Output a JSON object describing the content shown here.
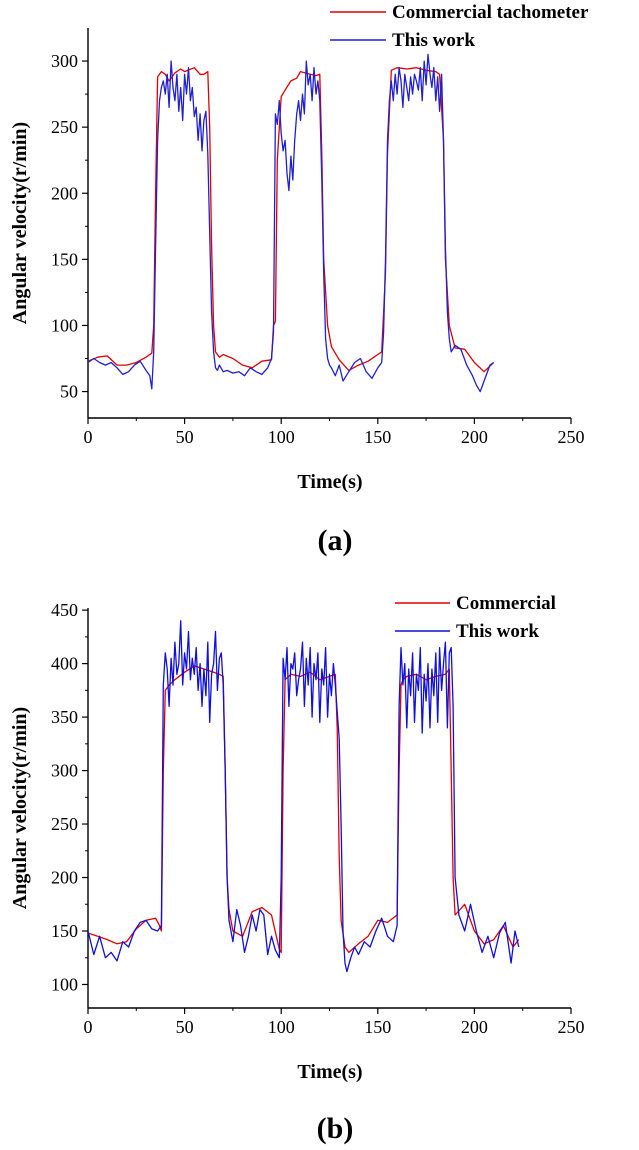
{
  "chart_data": [
    {
      "type": "line",
      "panel_label": "(a)",
      "xlabel": "Time(s)",
      "ylabel": "Angular velocity(r/min)",
      "xlim": [
        0,
        250
      ],
      "ylim": [
        30,
        325
      ],
      "xticks": [
        0,
        50,
        100,
        150,
        200,
        250
      ],
      "yticks": [
        50,
        100,
        150,
        200,
        250,
        300
      ],
      "legend_position": "top-right",
      "series": [
        {
          "name": "Commercial tachometer",
          "color": "#e00000",
          "x": [
            0,
            5,
            10,
            15,
            20,
            25,
            30,
            33,
            34,
            35,
            36,
            38,
            40,
            42,
            45,
            48,
            50,
            55,
            58,
            60,
            62,
            63,
            64,
            65,
            66,
            68,
            70,
            75,
            80,
            85,
            90,
            95,
            96,
            97,
            98,
            100,
            102,
            105,
            108,
            110,
            115,
            118,
            120,
            121,
            122,
            124,
            126,
            130,
            135,
            140,
            145,
            150,
            152,
            154,
            155,
            157,
            160,
            165,
            170,
            175,
            180,
            182,
            184,
            185,
            187,
            190,
            195,
            200,
            205,
            210
          ],
          "values": [
            73,
            76,
            77,
            70,
            70,
            72,
            76,
            79,
            100,
            200,
            288,
            292,
            290,
            285,
            291,
            294,
            292,
            295,
            290,
            290,
            292,
            250,
            160,
            100,
            80,
            76,
            78,
            75,
            70,
            68,
            73,
            74,
            100,
            103,
            225,
            273,
            278,
            285,
            287,
            292,
            290,
            289,
            290,
            230,
            150,
            100,
            84,
            74,
            66,
            70,
            73,
            78,
            80,
            140,
            230,
            293,
            295,
            294,
            295,
            293,
            292,
            290,
            240,
            150,
            100,
            83,
            82,
            72,
            65,
            72
          ]
        },
        {
          "name": "This work",
          "color": "#2020d0",
          "x": [
            0,
            3,
            6,
            9,
            12,
            15,
            18,
            21,
            24,
            27,
            30,
            32,
            33,
            34,
            35,
            36,
            37,
            38,
            39,
            40,
            41,
            42,
            43,
            44,
            45,
            46,
            47,
            48,
            49,
            50,
            51,
            52,
            53,
            54,
            55,
            56,
            57,
            58,
            59,
            60,
            61,
            62,
            63,
            64,
            65,
            66,
            67,
            68,
            70,
            72,
            75,
            78,
            81,
            84,
            87,
            90,
            93,
            95,
            96,
            97,
            98,
            99,
            100,
            101,
            102,
            103,
            104,
            105,
            106,
            107,
            108,
            109,
            110,
            111,
            112,
            113,
            114,
            115,
            116,
            117,
            118,
            119,
            120,
            121,
            122,
            123,
            124,
            125,
            126,
            128,
            130,
            132,
            135,
            138,
            141,
            144,
            147,
            150,
            152,
            153,
            154,
            155,
            156,
            157,
            158,
            159,
            160,
            161,
            162,
            163,
            164,
            165,
            166,
            167,
            168,
            169,
            170,
            171,
            172,
            173,
            174,
            175,
            176,
            177,
            178,
            179,
            180,
            181,
            182,
            183,
            184,
            185,
            186,
            187,
            188,
            190,
            193,
            196,
            199,
            201,
            203,
            205,
            208,
            210
          ],
          "values": [
            72,
            75,
            72,
            70,
            72,
            68,
            63,
            65,
            70,
            73,
            66,
            62,
            52,
            80,
            160,
            240,
            270,
            280,
            285,
            275,
            290,
            265,
            300,
            280,
            270,
            290,
            262,
            280,
            255,
            290,
            275,
            295,
            270,
            280,
            258,
            265,
            240,
            260,
            232,
            255,
            262,
            230,
            170,
            110,
            80,
            68,
            66,
            70,
            65,
            66,
            64,
            65,
            62,
            68,
            65,
            63,
            68,
            75,
            95,
            260,
            252,
            270,
            245,
            232,
            240,
            215,
            202,
            228,
            210,
            240,
            260,
            270,
            255,
            275,
            260,
            300,
            282,
            290,
            270,
            295,
            275,
            285,
            270,
            210,
            140,
            90,
            75,
            70,
            68,
            62,
            70,
            58,
            65,
            72,
            75,
            65,
            60,
            68,
            72,
            95,
            150,
            240,
            270,
            285,
            270,
            290,
            275,
            295,
            285,
            265,
            290,
            280,
            270,
            288,
            275,
            290,
            285,
            278,
            295,
            270,
            300,
            282,
            305,
            290,
            280,
            295,
            270,
            288,
            262,
            290,
            240,
            160,
            110,
            90,
            80,
            85,
            82,
            70,
            62,
            55,
            50,
            58,
            70,
            72
          ]
        }
      ]
    },
    {
      "type": "line",
      "panel_label": "(b)",
      "xlabel": "Time(s)",
      "ylabel": "Angular velocity(r/min)",
      "xlim": [
        0,
        250
      ],
      "ylim": [
        78,
        452
      ],
      "xticks": [
        0,
        50,
        100,
        150,
        200,
        250
      ],
      "yticks": [
        100,
        150,
        200,
        250,
        300,
        350,
        400,
        450
      ],
      "legend_position": "top-right",
      "series": [
        {
          "name": "Commercial",
          "color": "#e00000",
          "x": [
            0,
            5,
            10,
            15,
            20,
            25,
            30,
            35,
            37,
            38,
            39,
            40,
            42,
            45,
            50,
            55,
            60,
            65,
            68,
            70,
            71,
            72,
            73,
            75,
            80,
            85,
            90,
            95,
            99,
            100,
            101,
            102,
            105,
            110,
            115,
            120,
            125,
            128,
            129,
            130,
            131,
            133,
            135,
            140,
            145,
            150,
            155,
            160,
            161,
            162,
            163,
            165,
            170,
            175,
            180,
            185,
            187,
            188,
            189,
            190,
            195,
            200,
            205,
            210,
            215,
            220,
            223
          ],
          "values": [
            148,
            145,
            142,
            138,
            140,
            152,
            160,
            162,
            155,
            150,
            300,
            375,
            380,
            385,
            392,
            398,
            395,
            392,
            390,
            388,
            300,
            200,
            170,
            150,
            145,
            168,
            172,
            165,
            133,
            130,
            300,
            385,
            390,
            388,
            392,
            385,
            388,
            390,
            340,
            220,
            160,
            135,
            130,
            138,
            145,
            160,
            158,
            165,
            300,
            380,
            385,
            388,
            390,
            385,
            388,
            390,
            395,
            300,
            200,
            165,
            175,
            150,
            138,
            142,
            155,
            135,
            142
          ]
        },
        {
          "name": "This work",
          "color": "#1010d8",
          "x": [
            0,
            3,
            6,
            9,
            12,
            15,
            18,
            21,
            24,
            27,
            30,
            33,
            36,
            38,
            39,
            40,
            41,
            42,
            43,
            44,
            45,
            46,
            47,
            48,
            49,
            50,
            51,
            52,
            53,
            54,
            55,
            56,
            57,
            58,
            59,
            60,
            61,
            62,
            63,
            64,
            65,
            66,
            67,
            68,
            69,
            70,
            71,
            72,
            73,
            75,
            77,
            79,
            81,
            83,
            85,
            87,
            89,
            91,
            93,
            95,
            97,
            99,
            100,
            101,
            102,
            103,
            104,
            105,
            106,
            107,
            108,
            109,
            110,
            111,
            112,
            113,
            114,
            115,
            116,
            117,
            118,
            119,
            120,
            121,
            122,
            123,
            124,
            125,
            126,
            127,
            128,
            129,
            130,
            131,
            132,
            133,
            134,
            136,
            138,
            140,
            143,
            146,
            149,
            152,
            155,
            158,
            160,
            161,
            162,
            163,
            164,
            165,
            166,
            167,
            168,
            169,
            170,
            171,
            172,
            173,
            174,
            175,
            176,
            177,
            178,
            179,
            180,
            181,
            182,
            183,
            184,
            185,
            186,
            187,
            188,
            189,
            190,
            192,
            195,
            198,
            201,
            204,
            207,
            210,
            213,
            216,
            219,
            221,
            223
          ],
          "values": [
            150,
            128,
            145,
            125,
            130,
            122,
            140,
            135,
            150,
            158,
            160,
            152,
            150,
            155,
            380,
            410,
            395,
            360,
            405,
            380,
            420,
            390,
            400,
            440,
            380,
            410,
            395,
            430,
            385,
            405,
            390,
            415,
            375,
            400,
            360,
            395,
            370,
            420,
            345,
            390,
            400,
            430,
            375,
            405,
            410,
            380,
            300,
            200,
            160,
            140,
            170,
            155,
            130,
            145,
            165,
            150,
            170,
            165,
            128,
            145,
            132,
            125,
            200,
            405,
            385,
            415,
            360,
            400,
            395,
            410,
            370,
            385,
            395,
            420,
            360,
            405,
            380,
            415,
            350,
            400,
            385,
            410,
            345,
            395,
            380,
            415,
            350,
            390,
            370,
            400,
            380,
            355,
            330,
            250,
            150,
            120,
            112,
            125,
            135,
            128,
            140,
            135,
            150,
            162,
            145,
            140,
            155,
            360,
            415,
            380,
            400,
            340,
            395,
            370,
            410,
            345,
            390,
            375,
            415,
            335,
            390,
            365,
            400,
            340,
            395,
            370,
            410,
            345,
            415,
            375,
            400,
            420,
            340,
            410,
            415,
            360,
            200,
            165,
            150,
            175,
            150,
            130,
            145,
            125,
            148,
            158,
            120,
            150,
            135
          ]
        }
      ]
    }
  ]
}
